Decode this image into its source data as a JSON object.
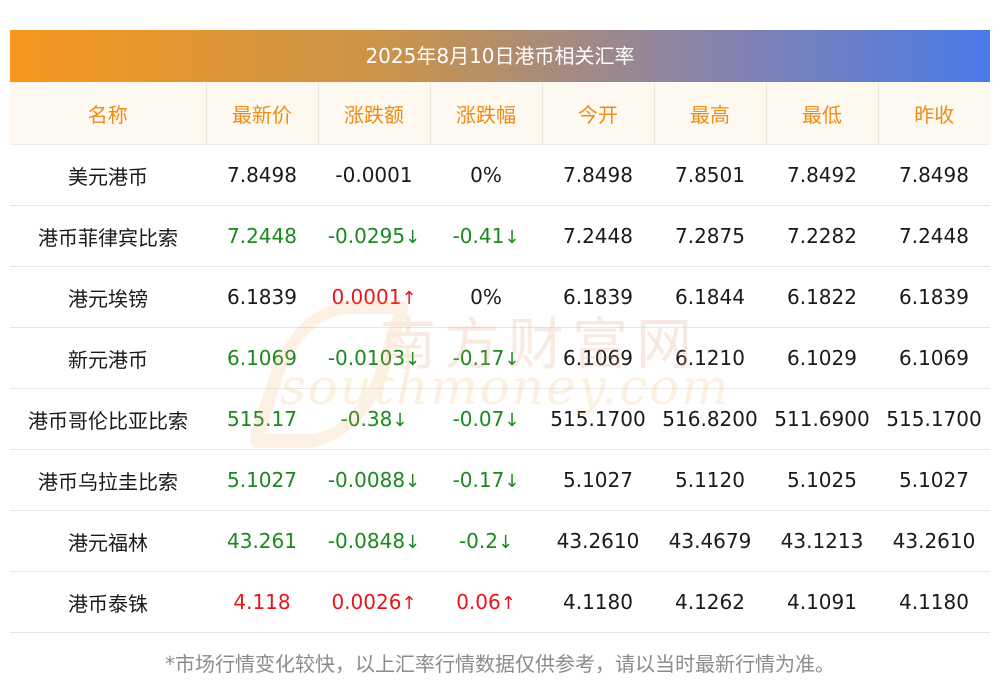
{
  "title": "2025年8月10日港币相关汇率",
  "headers": [
    "名称",
    "最新价",
    "涨跌额",
    "涨跌幅",
    "今开",
    "最高",
    "最低",
    "昨收"
  ],
  "rows": [
    {
      "name": "美元港币",
      "latest": "7.8498",
      "change": "-0.0001",
      "change_arrow": "",
      "pct": "0%",
      "pct_arrow": "",
      "open": "7.8498",
      "high": "7.8501",
      "low": "7.8492",
      "prev": "7.8498",
      "latest_dir": "flat",
      "change_dir": "flat",
      "pct_dir": "flat"
    },
    {
      "name": "港币菲律宾比索",
      "latest": "7.2448",
      "change": "-0.0295",
      "change_arrow": "↓",
      "pct": "-0.41",
      "pct_arrow": "↓",
      "open": "7.2448",
      "high": "7.2875",
      "low": "7.2282",
      "prev": "7.2448",
      "latest_dir": "down",
      "change_dir": "down",
      "pct_dir": "down"
    },
    {
      "name": "港元埃镑",
      "latest": "6.1839",
      "change": "0.0001",
      "change_arrow": "↑",
      "pct": "0%",
      "pct_arrow": "",
      "open": "6.1839",
      "high": "6.1844",
      "low": "6.1822",
      "prev": "6.1839",
      "latest_dir": "flat",
      "change_dir": "up",
      "pct_dir": "flat"
    },
    {
      "name": "新元港币",
      "latest": "6.1069",
      "change": "-0.0103",
      "change_arrow": "↓",
      "pct": "-0.17",
      "pct_arrow": "↓",
      "open": "6.1069",
      "high": "6.1210",
      "low": "6.1029",
      "prev": "6.1069",
      "latest_dir": "down",
      "change_dir": "down",
      "pct_dir": "down"
    },
    {
      "name": "港币哥伦比亚比索",
      "latest": "515.17",
      "change": "-0.38",
      "change_arrow": "↓",
      "pct": "-0.07",
      "pct_arrow": "↓",
      "open": "515.1700",
      "high": "516.8200",
      "low": "511.6900",
      "prev": "515.1700",
      "latest_dir": "down",
      "change_dir": "down",
      "pct_dir": "down"
    },
    {
      "name": "港币乌拉圭比索",
      "latest": "5.1027",
      "change": "-0.0088",
      "change_arrow": "↓",
      "pct": "-0.17",
      "pct_arrow": "↓",
      "open": "5.1027",
      "high": "5.1120",
      "low": "5.1025",
      "prev": "5.1027",
      "latest_dir": "down",
      "change_dir": "down",
      "pct_dir": "down"
    },
    {
      "name": "港元福林",
      "latest": "43.261",
      "change": "-0.0848",
      "change_arrow": "↓",
      "pct": "-0.2",
      "pct_arrow": "↓",
      "open": "43.2610",
      "high": "43.4679",
      "low": "43.1213",
      "prev": "43.2610",
      "latest_dir": "down",
      "change_dir": "down",
      "pct_dir": "down"
    },
    {
      "name": "港币泰铢",
      "latest": "4.118",
      "change": "0.0026",
      "change_arrow": "↑",
      "pct": "0.06",
      "pct_arrow": "↑",
      "open": "4.1180",
      "high": "4.1262",
      "low": "4.1091",
      "prev": "4.1180",
      "latest_dir": "up",
      "change_dir": "up",
      "pct_dir": "up"
    }
  ],
  "watermark": {
    "cn": "南方财富网",
    "en": "southmoney.com"
  },
  "footnote": "*市场行情变化较快，以上汇率行情数据仅供参考，请以当时最新行情为准。",
  "colors": {
    "up": "#e8141b",
    "down": "#1a8a1f",
    "header_text": "#f08c16",
    "header_bg": "#fdf9f0",
    "title_gradient_start": "#f7971e",
    "title_gradient_end": "#4a7ae8"
  }
}
